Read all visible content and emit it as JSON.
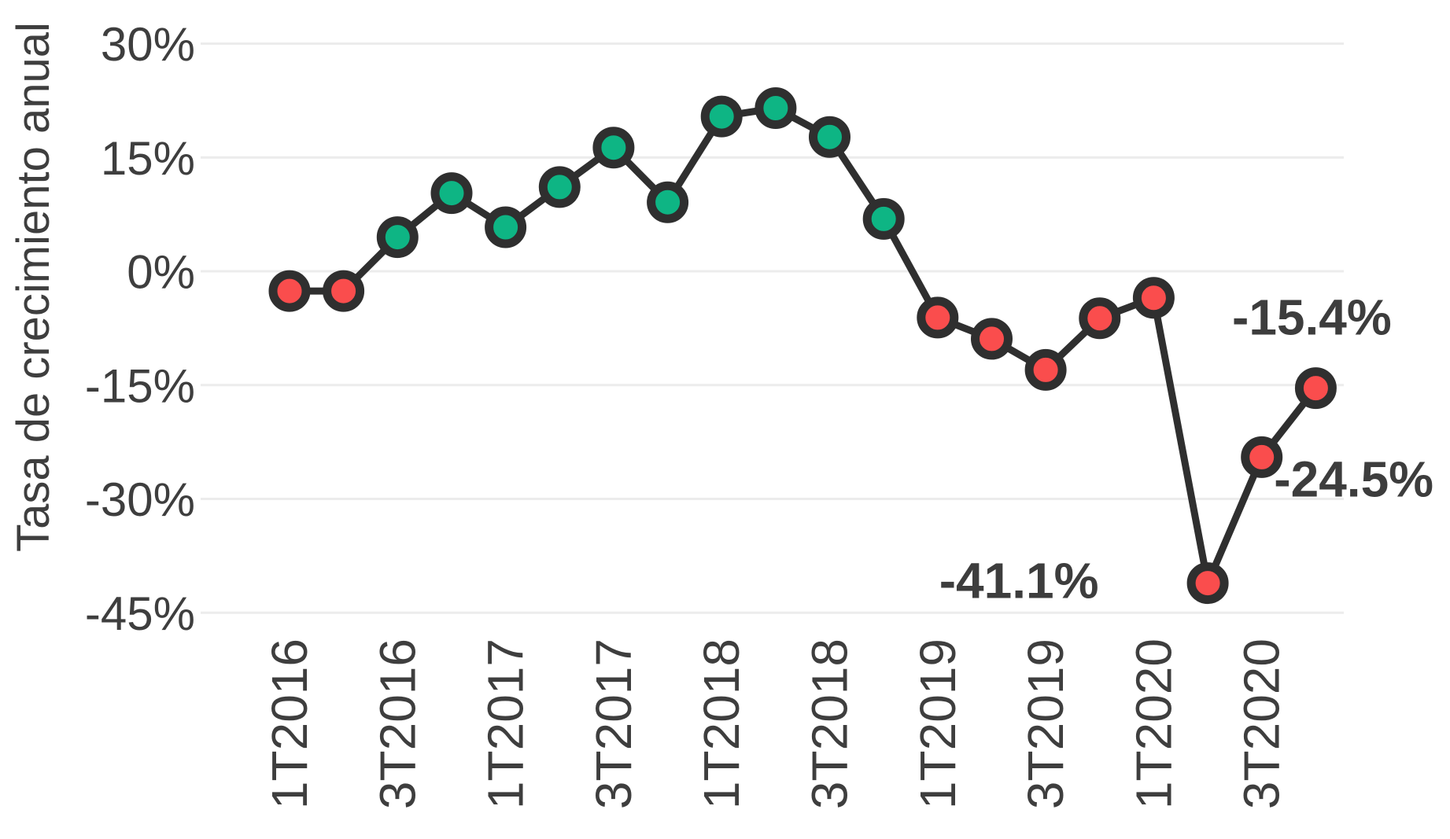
{
  "chart_data": {
    "type": "line",
    "title": "",
    "ylabel": "Tasa de crecimiento anual",
    "xlabel": "",
    "grid": true,
    "legend": false,
    "ylim": [
      -45,
      30
    ],
    "y_gridlines_pct": [
      30,
      15,
      0,
      -15,
      -30,
      -45
    ],
    "y_tick_labels": [
      "30%",
      "15%",
      "0%",
      "-15%",
      "-30%",
      "-45%"
    ],
    "x_tick_labels": [
      "1T2016",
      "3T2016",
      "1T2017",
      "3T2017",
      "1T2018",
      "3T2018",
      "1T2019",
      "3T2019",
      "1T2020",
      "3T2020"
    ],
    "categories": [
      "1T2016",
      "2T2016",
      "3T2016",
      "4T2016",
      "1T2017",
      "2T2017",
      "3T2017",
      "4T2017",
      "1T2018",
      "2T2018",
      "3T2018",
      "4T2018",
      "1T2019",
      "2T2019",
      "3T2019",
      "4T2019",
      "1T2020",
      "2T2020",
      "3T2020",
      "4T2020"
    ],
    "series": [
      {
        "name": "Tasa de crecimiento anual",
        "values": [
          -2.6,
          -2.6,
          4.5,
          10.3,
          5.8,
          11.1,
          16.3,
          9.1,
          20.4,
          21.5,
          17.7,
          6.9,
          -6.1,
          -8.9,
          -13.0,
          -6.2,
          -3.5,
          -41.1,
          -24.5,
          -15.4
        ]
      }
    ],
    "annotations": [
      {
        "category": "2T2020",
        "label": "-41.1%"
      },
      {
        "category": "3T2020",
        "label": "-24.5%"
      },
      {
        "category": "4T2020",
        "label": "-15.4%"
      }
    ],
    "colors": {
      "positive_marker": "#0eb584",
      "negative_marker": "#fa4d4d",
      "line": "#2f2f2f",
      "marker_stroke": "#2f2f2f",
      "grid": "#ececec",
      "tick_text": "#3e3e3e",
      "annotation_text": "#3d3d3d"
    }
  }
}
